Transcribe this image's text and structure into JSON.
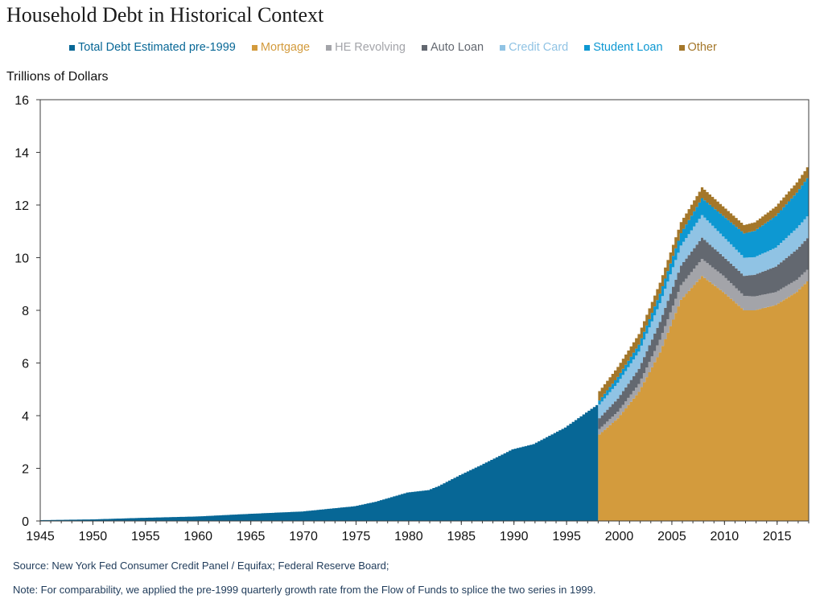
{
  "chart_data": {
    "type": "area",
    "title": "Household Debt in Historical Context",
    "ylabel": "Trillions of Dollars",
    "xlabel": "",
    "ylim": [
      0,
      16
    ],
    "xlim": [
      1945,
      2018
    ],
    "yticks": [
      0,
      2,
      4,
      6,
      8,
      10,
      12,
      14,
      16
    ],
    "xticks": [
      1945,
      1950,
      1955,
      1960,
      1965,
      1970,
      1975,
      1980,
      1985,
      1990,
      1995,
      2000,
      2005,
      2010,
      2015
    ],
    "legend": [
      {
        "name": "Total Debt Estimated pre-1999",
        "color": "#076796"
      },
      {
        "name": "Mortgage",
        "color": "#d39b3d"
      },
      {
        "name": "HE Revolving",
        "color": "#a3a4a9"
      },
      {
        "name": "Auto Loan",
        "color": "#636870"
      },
      {
        "name": "Credit Card",
        "color": "#90c3e4"
      },
      {
        "name": "Student Loan",
        "color": "#0d98d2"
      },
      {
        "name": "Other",
        "color": "#a4772a"
      }
    ],
    "pre1999": {
      "name": "Total Debt Estimated pre-1999",
      "x": [
        1945,
        1950,
        1955,
        1960,
        1965,
        1970,
        1975,
        1977,
        1980,
        1982,
        1983,
        1985,
        1987,
        1990,
        1992,
        1995,
        1998
      ],
      "values": [
        0.03,
        0.06,
        0.12,
        0.17,
        0.27,
        0.36,
        0.56,
        0.73,
        1.08,
        1.17,
        1.33,
        1.74,
        2.12,
        2.72,
        2.92,
        3.55,
        4.4
      ]
    },
    "post1999": {
      "x": [
        1998,
        2000,
        2002,
        2004,
        2006,
        2008,
        2010,
        2012,
        2013,
        2015,
        2017,
        2018
      ],
      "series": [
        {
          "name": "Mortgage",
          "values": [
            3.2,
            3.9,
            4.9,
            6.4,
            8.4,
            9.3,
            8.7,
            8.0,
            8.0,
            8.2,
            8.7,
            9.1
          ]
        },
        {
          "name": "HE Revolving",
          "values": [
            0.2,
            0.25,
            0.3,
            0.48,
            0.56,
            0.65,
            0.62,
            0.55,
            0.53,
            0.49,
            0.46,
            0.44
          ]
        },
        {
          "name": "Auto Loan",
          "values": [
            0.4,
            0.5,
            0.58,
            0.68,
            0.74,
            0.81,
            0.73,
            0.76,
            0.82,
            0.97,
            1.15,
            1.2
          ]
        },
        {
          "name": "Credit Card",
          "values": [
            0.5,
            0.6,
            0.65,
            0.71,
            0.76,
            0.86,
            0.76,
            0.69,
            0.67,
            0.72,
            0.81,
            0.83
          ]
        },
        {
          "name": "Student Loan",
          "values": [
            0.15,
            0.22,
            0.27,
            0.36,
            0.47,
            0.64,
            0.78,
            0.92,
            1.0,
            1.2,
            1.35,
            1.45
          ]
        },
        {
          "name": "Other",
          "values": [
            0.35,
            0.38,
            0.4,
            0.42,
            0.42,
            0.41,
            0.36,
            0.32,
            0.32,
            0.36,
            0.39,
            0.41
          ]
        }
      ]
    },
    "title_display": "Household Debt in Historical Context",
    "source": "Source:  New York Fed Consumer Credit Panel / Equifax; Federal Reserve Board;",
    "note": "Note: For comparability, we applied the pre-1999 quarterly growth rate from the Flow of Funds to splice the two series in 1999."
  }
}
